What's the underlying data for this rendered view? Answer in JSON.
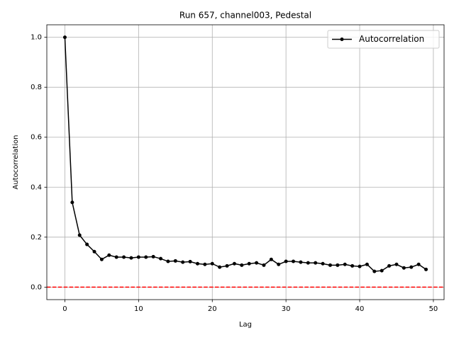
{
  "chart_data": {
    "type": "line",
    "title": "Run 657, channel003, Pedestal",
    "x_label": "Lag",
    "y_label": "Autocorrelation",
    "x": [
      0,
      1,
      2,
      3,
      4,
      5,
      6,
      7,
      8,
      9,
      10,
      11,
      12,
      13,
      14,
      15,
      16,
      17,
      18,
      19,
      20,
      21,
      22,
      23,
      24,
      25,
      26,
      27,
      28,
      29,
      30,
      31,
      32,
      33,
      34,
      35,
      36,
      37,
      38,
      39,
      40,
      41,
      42,
      43,
      44,
      45,
      46,
      47,
      48,
      49
    ],
    "series": [
      {
        "name": "Autocorrelation",
        "color": "#000000",
        "values": [
          1.0,
          0.339,
          0.208,
          0.171,
          0.142,
          0.111,
          0.128,
          0.12,
          0.12,
          0.117,
          0.12,
          0.12,
          0.122,
          0.114,
          0.103,
          0.105,
          0.1,
          0.102,
          0.094,
          0.091,
          0.094,
          0.08,
          0.085,
          0.094,
          0.088,
          0.094,
          0.097,
          0.088,
          0.111,
          0.091,
          0.103,
          0.103,
          0.1,
          0.097,
          0.097,
          0.094,
          0.088,
          0.088,
          0.091,
          0.085,
          0.083,
          0.091,
          0.063,
          0.066,
          0.085,
          0.091,
          0.077,
          0.08,
          0.091,
          0.071
        ]
      }
    ],
    "hline": {
      "value": 0,
      "color": "#ff0000"
    },
    "xlim": [
      -2.45,
      51.45
    ],
    "ylim": [
      -0.05,
      1.05
    ],
    "xticks": [
      0,
      10,
      20,
      30,
      40,
      50
    ],
    "yticks": [
      {
        "value": 0,
        "label": "0.0"
      },
      {
        "value": 0.2,
        "label": "0.2"
      },
      {
        "value": 0.4,
        "label": "0.4"
      },
      {
        "value": 0.6,
        "label": "0.6"
      },
      {
        "value": 0.8,
        "label": "0.8"
      },
      {
        "value": 1.0,
        "label": "1.0"
      }
    ],
    "grid": true,
    "legend": "upper right"
  }
}
